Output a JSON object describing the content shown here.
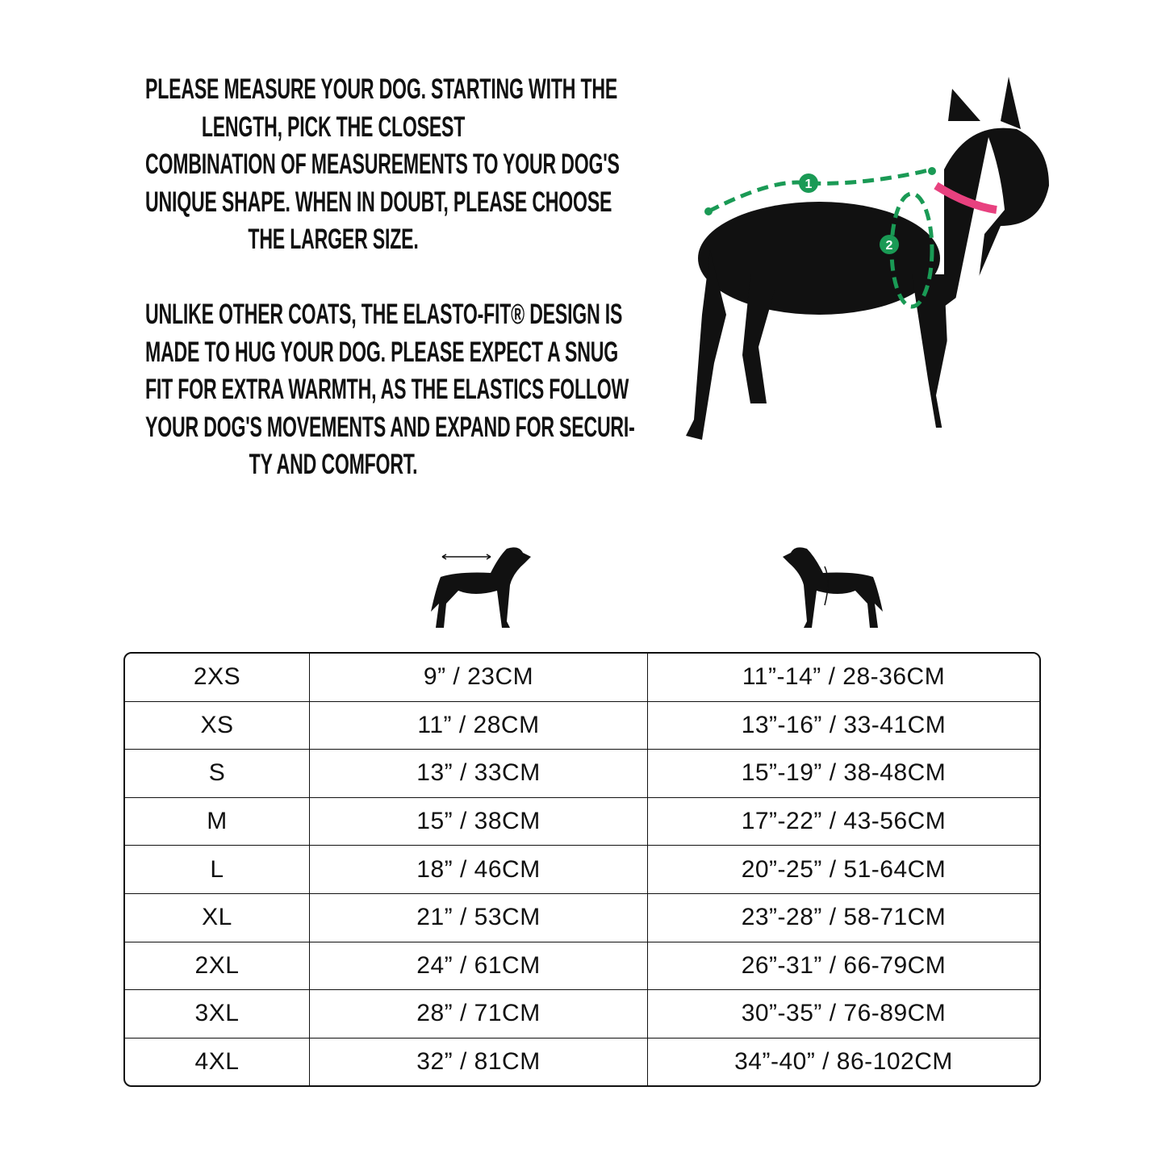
{
  "intro": {
    "paragraph1": [
      "PLEASE MEASURE YOUR DOG. STARTING WITH THE",
      "LENGTH, PICK THE CLOSEST",
      "COMBINATION OF MEASUREMENTS TO YOUR DOG'S",
      "UNIQUE SHAPE. WHEN IN DOUBT, PLEASE CHOOSE",
      "THE LARGER SIZE."
    ],
    "paragraph2": [
      "UNLIKE OTHER COATS, THE ELASTO-FIT® DESIGN IS",
      "MADE TO HUG YOUR DOG. PLEASE EXPECT A SNUG",
      "FIT FOR EXTRA WARMTH, AS THE ELASTICS FOLLOW",
      "YOUR DOG'S MOVEMENTS AND EXPAND FOR SECURI-",
      "TY AND COMFORT."
    ]
  },
  "photo": {
    "marker_1": "1",
    "marker_2": "2",
    "accent": "#1a9a55",
    "collar": "#e8417f"
  },
  "icons": {
    "length": "dog-length-icon",
    "girth": "dog-girth-icon"
  },
  "size_table": {
    "rows": [
      [
        "2XS",
        "9” / 23CM",
        "11”-14” / 28-36CM"
      ],
      [
        "XS",
        "11” / 28CM",
        "13”-16” / 33-41CM"
      ],
      [
        "S",
        "13” / 33CM",
        "15”-19” / 38-48CM"
      ],
      [
        "M",
        "15” / 38CM",
        "17”-22” / 43-56CM"
      ],
      [
        "L",
        "18” / 46CM",
        "20”-25” / 51-64CM"
      ],
      [
        "XL",
        "21” / 53CM",
        "23”-28” / 58-71CM"
      ],
      [
        "2XL",
        "24” / 61CM",
        "26”-31” / 66-79CM"
      ],
      [
        "3XL",
        "28” / 71CM",
        "30”-35” / 76-89CM"
      ],
      [
        "4XL",
        "32” / 81CM",
        "34”-40” / 86-102CM"
      ]
    ]
  }
}
